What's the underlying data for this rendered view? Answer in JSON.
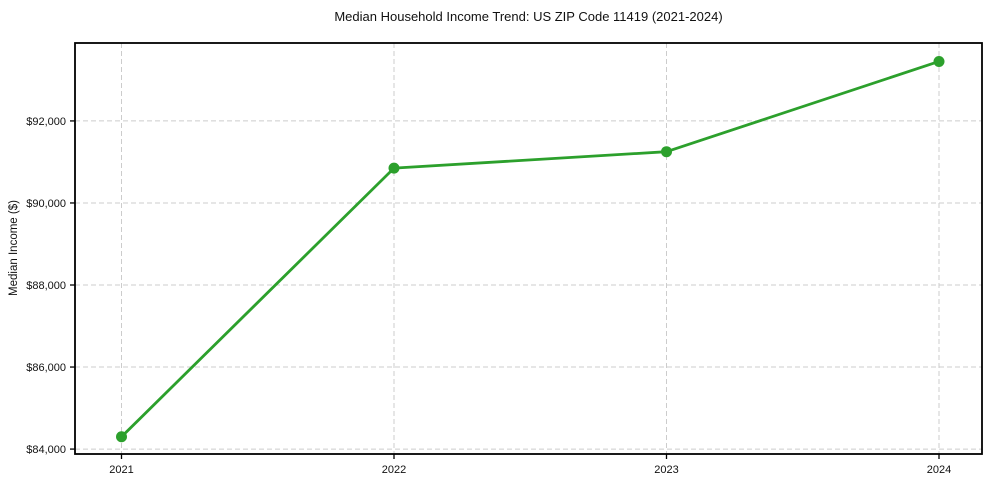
{
  "chart_data": {
    "type": "line",
    "title": "Median Household Income Trend: US ZIP Code 11419 (2021-2024)",
    "xlabel": "",
    "ylabel": "Median Income ($)",
    "categories": [
      "2021",
      "2022",
      "2023",
      "2024"
    ],
    "series": [
      {
        "name": "Median Household Income",
        "values": [
          84300,
          90850,
          91250,
          93450
        ],
        "color": "#2ca02c",
        "marker": "circle",
        "line_width": 2.8,
        "marker_radius": 5.5
      }
    ],
    "ylim": [
      83880,
      93900
    ],
    "y_ticks": [
      84000,
      86000,
      88000,
      90000,
      92000
    ],
    "y_tick_labels": [
      "$84,000",
      "$86,000",
      "$88,000",
      "$90,000",
      "$92,000"
    ],
    "grid": true,
    "grid_style": "dashed",
    "grid_color": "#cccccc",
    "legend_position": "none",
    "background_color": "#ffffff",
    "spine_color": "#000000"
  }
}
